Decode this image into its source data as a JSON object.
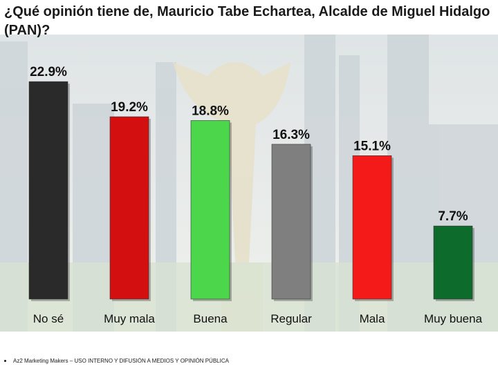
{
  "title": "¿Qué opinión tiene de, Mauricio Tabe Echartea, Alcalde de Miguel Hidalgo (PAN)?",
  "footer": "Az2 Marketing Makers – USO INTERNO Y DIFUSIÓN A MEDIOS Y OPINIÓN PÚBLICA",
  "chart_data": {
    "type": "bar",
    "categories": [
      "No sé",
      "Muy mala",
      "Buena",
      "Regular",
      "Mala",
      "Muy buena"
    ],
    "values": [
      22.9,
      19.2,
      18.8,
      16.3,
      15.1,
      7.7
    ],
    "value_labels": [
      "22.9%",
      "19.2%",
      "18.8%",
      "16.3%",
      "15.1%",
      "7.7%"
    ],
    "colors": [
      "#2a2a2a",
      "#d40f0f",
      "#4cd64c",
      "#7f7f7f",
      "#f41a1a",
      "#0d6b2c"
    ],
    "ylim": [
      0,
      24
    ],
    "grid": false,
    "legend": "none"
  }
}
